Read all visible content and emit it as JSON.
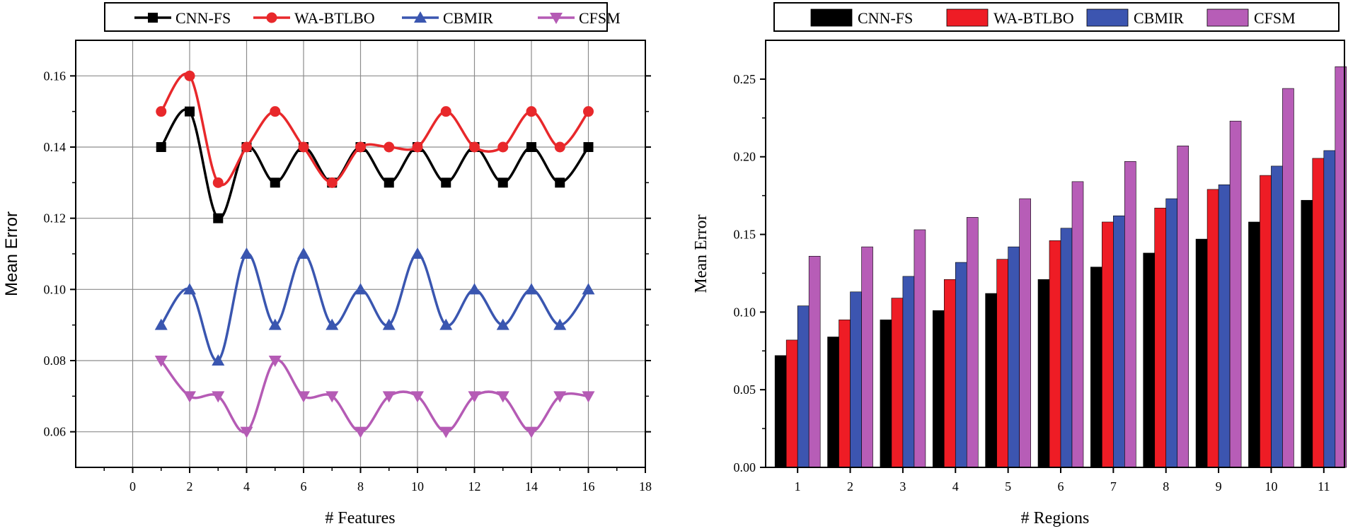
{
  "chart_data": [
    {
      "type": "line",
      "xlabel": "# Features",
      "ylabel": "Mean Error",
      "xlim": [
        -2,
        18
      ],
      "ylim": [
        0.05,
        0.17
      ],
      "xticks": [
        0,
        2,
        4,
        6,
        8,
        10,
        12,
        14,
        16,
        18
      ],
      "yticks": [
        0.06,
        0.08,
        0.1,
        0.12,
        0.14,
        0.16
      ],
      "ytick_labels": [
        "0.06",
        "0.08",
        "0.10",
        "0.12",
        "0.14",
        "0.16"
      ],
      "grid": true,
      "legend_position": "top",
      "x": [
        1,
        2,
        3,
        4,
        5,
        6,
        7,
        8,
        9,
        10,
        11,
        12,
        13,
        14,
        15,
        16
      ],
      "series": [
        {
          "name": "CNN-FS",
          "color": "#000000",
          "marker": "square",
          "values": [
            0.14,
            0.15,
            0.12,
            0.14,
            0.13,
            0.14,
            0.13,
            0.14,
            0.13,
            0.14,
            0.13,
            0.14,
            0.13,
            0.14,
            0.13,
            0.14
          ]
        },
        {
          "name": "WA-BTLBO",
          "color": "#e8282b",
          "marker": "circle",
          "values": [
            0.15,
            0.16,
            0.13,
            0.14,
            0.15,
            0.14,
            0.13,
            0.14,
            0.14,
            0.14,
            0.15,
            0.14,
            0.14,
            0.15,
            0.14,
            0.15
          ]
        },
        {
          "name": "CBMIR",
          "color": "#3a56b0",
          "marker": "triangle-up",
          "values": [
            0.09,
            0.1,
            0.08,
            0.11,
            0.09,
            0.11,
            0.09,
            0.1,
            0.09,
            0.11,
            0.09,
            0.1,
            0.09,
            0.1,
            0.09,
            0.1
          ]
        },
        {
          "name": "CFSM",
          "color": "#b55bb5",
          "marker": "triangle-down",
          "values": [
            0.08,
            0.07,
            0.07,
            0.06,
            0.08,
            0.07,
            0.07,
            0.06,
            0.07,
            0.07,
            0.06,
            0.07,
            0.07,
            0.06,
            0.07,
            0.07
          ]
        }
      ]
    },
    {
      "type": "bar",
      "xlabel": "# Regions",
      "ylabel": "Mean Error",
      "ylim": [
        0,
        0.275
      ],
      "yticks": [
        0.0,
        0.05,
        0.1,
        0.15,
        0.2,
        0.25
      ],
      "ytick_labels": [
        "0.00",
        "0.05",
        "0.10",
        "0.15",
        "0.20",
        "0.25"
      ],
      "grid": false,
      "legend_position": "top",
      "categories": [
        "1",
        "2",
        "3",
        "4",
        "5",
        "6",
        "7",
        "8",
        "9",
        "10",
        "11"
      ],
      "series": [
        {
          "name": "CNN-FS",
          "color": "#000000",
          "values": [
            0.072,
            0.084,
            0.095,
            0.101,
            0.112,
            0.121,
            0.129,
            0.138,
            0.147,
            0.158,
            0.172
          ]
        },
        {
          "name": "WA-BTLBO",
          "color": "#ee1c25",
          "values": [
            0.082,
            0.095,
            0.109,
            0.121,
            0.134,
            0.146,
            0.158,
            0.167,
            0.179,
            0.188,
            0.199
          ]
        },
        {
          "name": "CBMIR",
          "color": "#3c55b0",
          "values": [
            0.104,
            0.113,
            0.123,
            0.132,
            0.142,
            0.154,
            0.162,
            0.173,
            0.182,
            0.194,
            0.204
          ]
        },
        {
          "name": "CFSM",
          "color": "#b75db7",
          "values": [
            0.136,
            0.142,
            0.153,
            0.161,
            0.173,
            0.184,
            0.197,
            0.207,
            0.223,
            0.244,
            0.258
          ]
        }
      ]
    }
  ]
}
